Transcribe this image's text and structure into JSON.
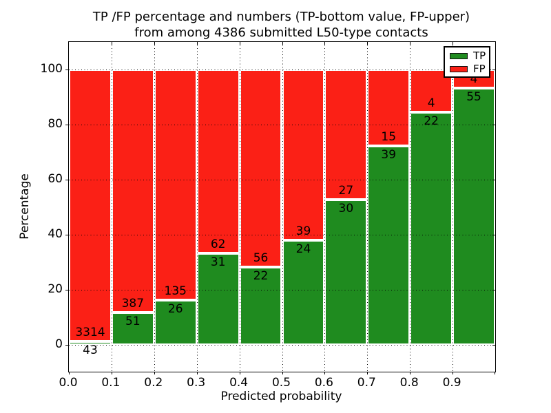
{
  "figure": {
    "title_line1": "TP /FP percentage and numbers (TP-bottom value, FP-upper)",
    "title_line2": "from among 4386 submitted L50-type contacts",
    "background_color": "#ffffff",
    "total_contacts": "4386"
  },
  "chart_data": {
    "type": "bar",
    "stacked": true,
    "normalized_to_percent": true,
    "title": "TP /FP percentage and numbers (TP-bottom value, FP-upper)\nfrom among 4386 submitted L50-type contacts",
    "xlabel": "Predicted probability",
    "ylabel": "Percentage",
    "xlim": [
      0.0,
      1.0
    ],
    "ylim": [
      -10,
      110
    ],
    "bin_width": 0.1,
    "grid": "dotted",
    "categories": [
      "0.0-0.1",
      "0.1-0.2",
      "0.2-0.3",
      "0.3-0.4",
      "0.4-0.5",
      "0.5-0.6",
      "0.6-0.7",
      "0.7-0.8",
      "0.8-0.9",
      "0.9-1.0"
    ],
    "x_ticks": [
      "0.0",
      "0.1",
      "0.2",
      "0.3",
      "0.4",
      "0.5",
      "0.6",
      "0.7",
      "0.8",
      "0.9"
    ],
    "x_tick_values": [
      0.0,
      0.1,
      0.2,
      0.3,
      0.4,
      0.5,
      0.6,
      0.7,
      0.8,
      0.9
    ],
    "y_ticks": [
      "0",
      "20",
      "40",
      "60",
      "80",
      "100"
    ],
    "y_tick_values": [
      0,
      20,
      40,
      60,
      80,
      100
    ],
    "series": [
      {
        "name": "TP",
        "color": "#1f8b1f",
        "counts": [
          43,
          51,
          26,
          31,
          22,
          24,
          30,
          39,
          22,
          55
        ],
        "percent": [
          1.28,
          11.64,
          16.15,
          33.33,
          28.21,
          38.1,
          52.63,
          72.22,
          84.62,
          93.22
        ]
      },
      {
        "name": "FP",
        "color": "#fb2016",
        "counts": [
          3314,
          387,
          135,
          62,
          56,
          39,
          27,
          15,
          4,
          4
        ],
        "percent": [
          98.72,
          88.36,
          83.85,
          66.67,
          71.79,
          61.9,
          47.37,
          27.78,
          15.38,
          6.78
        ]
      }
    ],
    "legend": {
      "position": "upper right",
      "entries": [
        {
          "label": "TP",
          "color": "#1f8b1f"
        },
        {
          "label": "FP",
          "color": "#fb2016"
        }
      ]
    }
  }
}
